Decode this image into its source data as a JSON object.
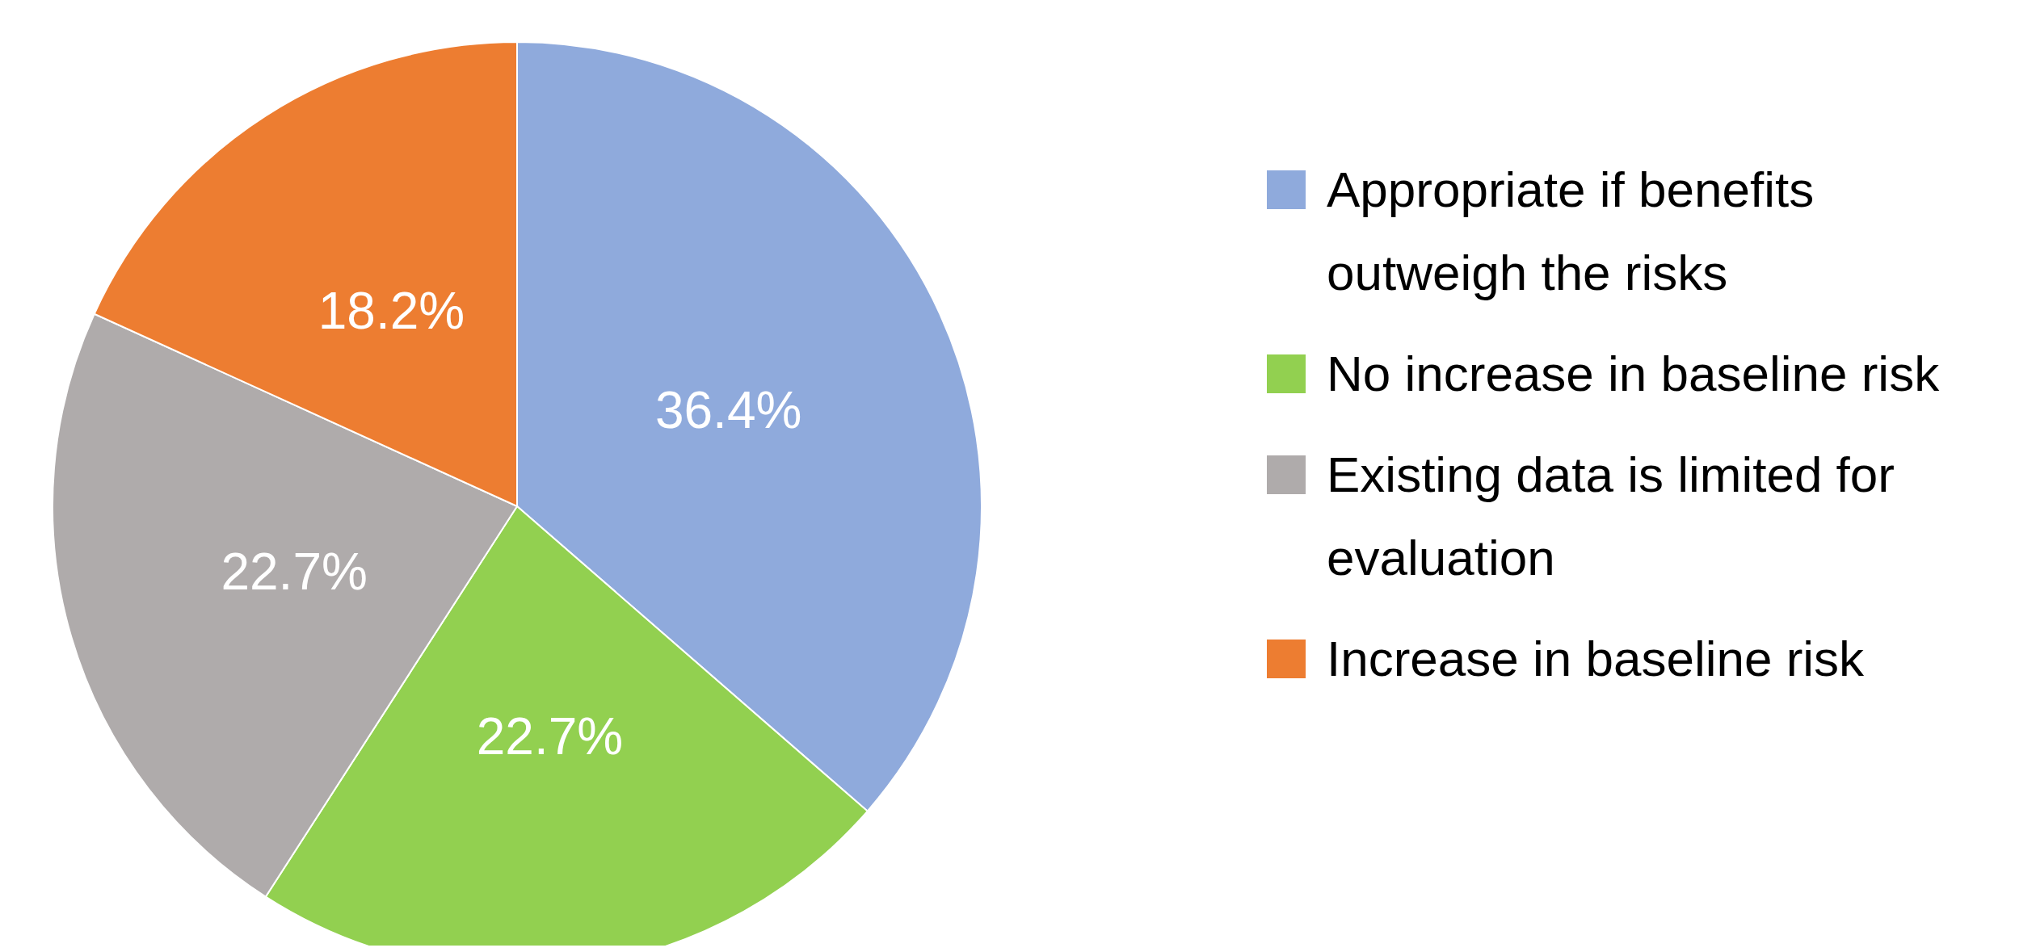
{
  "chart_data": {
    "type": "pie",
    "categories": [
      "Appropriate if benefits outweigh the risks",
      "No increase in baseline risk",
      "Existing data is limited for evaluation",
      "Increase in baseline risk"
    ],
    "values": [
      36.4,
      22.7,
      22.7,
      18.2
    ],
    "colors": [
      "#8faadc",
      "#92d050",
      "#afabab",
      "#ed7d31"
    ],
    "value_labels": [
      "36.4%",
      "22.7%",
      "22.7%",
      "18.2%"
    ],
    "legend": "right"
  }
}
